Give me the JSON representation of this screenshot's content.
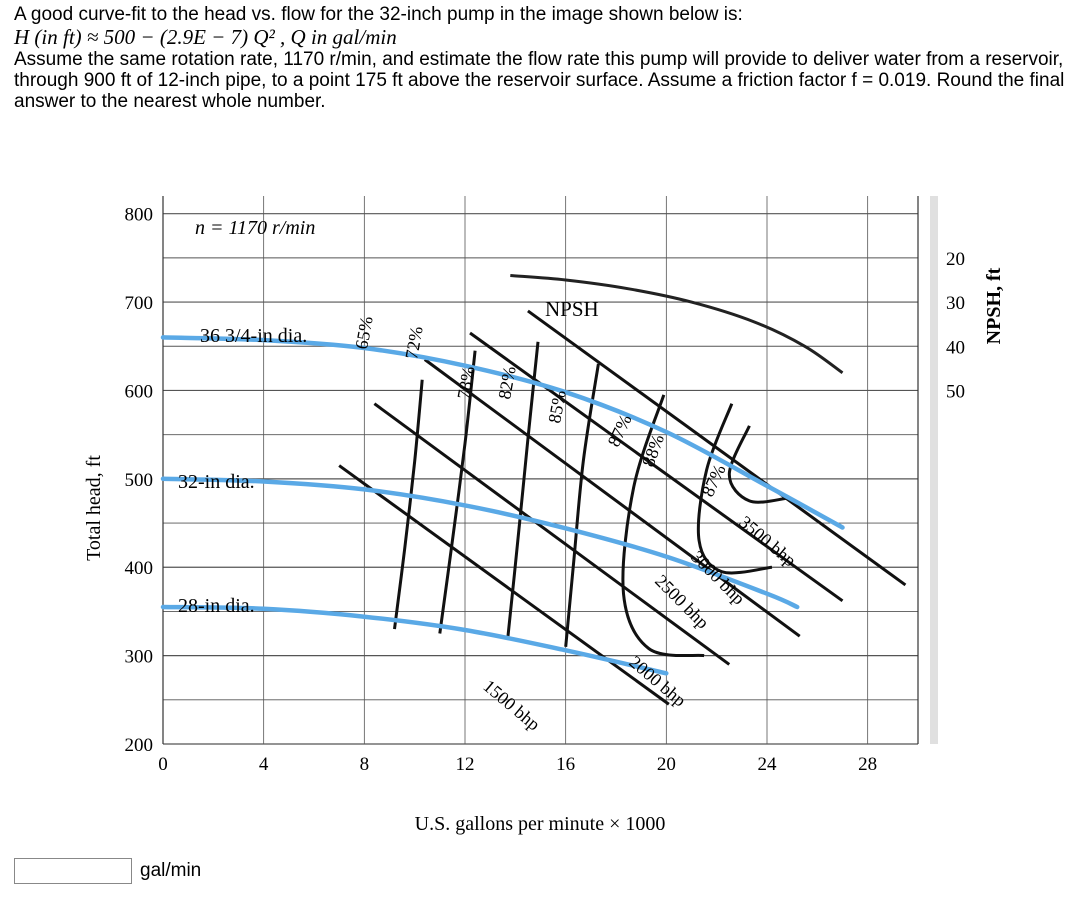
{
  "question": {
    "line1": "A good curve-fit to the head vs. flow for the 32-inch pump in the image shown below is:",
    "formula": "H (in ft) ≈ 500 − (2.9E − 7) Q² ,   Q in gal/min",
    "body": "Assume the same rotation rate, 1170 r/min, and estimate the flow rate this pump will provide to deliver water from a reservoir, through 900 ft of 12-inch pipe, to a point 175 ft above the reservoir surface. Assume a friction factor f = 0.019. Round the final answer to the nearest whole number."
  },
  "answer": {
    "value": "",
    "unit": "gal/min"
  },
  "chart_data": {
    "type": "line",
    "xlabel": "U.S. gallons per minute × 1000",
    "ylabel": "Total head, ft",
    "y2label": "NPSH, ft",
    "xlim": [
      0,
      30
    ],
    "ylim": [
      200,
      820
    ],
    "x_ticks": [
      "0",
      "4",
      "8",
      "12",
      "16",
      "20",
      "24",
      "28"
    ],
    "y_ticks": [
      "200",
      "300",
      "400",
      "500",
      "600",
      "700",
      "800"
    ],
    "y2_ticks": [
      "50",
      "40",
      "30",
      "20"
    ],
    "speed_label": "n = 1170 r/min",
    "head_curve_color": "#5aa9e6",
    "head_curves": [
      {
        "label": "36 3/4-in dia.",
        "points": [
          [
            0,
            660
          ],
          [
            4,
            657
          ],
          [
            8,
            648
          ],
          [
            12,
            628
          ],
          [
            16,
            598
          ],
          [
            20,
            553
          ],
          [
            24,
            492
          ],
          [
            27,
            445
          ]
        ]
      },
      {
        "label": "32-in dia.",
        "points": [
          [
            0,
            500
          ],
          [
            4,
            497
          ],
          [
            8,
            488
          ],
          [
            12,
            470
          ],
          [
            16,
            444
          ],
          [
            20,
            412
          ],
          [
            24,
            370
          ],
          [
            25.2,
            355
          ]
        ]
      },
      {
        "label": "28-in dia.",
        "points": [
          [
            0,
            355
          ],
          [
            4,
            353
          ],
          [
            8,
            344
          ],
          [
            12,
            329
          ],
          [
            16,
            306
          ],
          [
            20,
            280
          ]
        ]
      }
    ],
    "npsh_curve": {
      "label": "NPSH",
      "points": [
        [
          13.8,
          24
        ],
        [
          16,
          25
        ],
        [
          18.5,
          27
        ],
        [
          21,
          30
        ],
        [
          23.5,
          34.5
        ],
        [
          25.5,
          40
        ],
        [
          27,
          46
        ]
      ]
    },
    "efficiency_labels": [
      "65%",
      "72%",
      "78%",
      "82%",
      "85%",
      "87%",
      "88%",
      "87%"
    ],
    "power_labels": [
      "1500 bhp",
      "2000 bhp",
      "2500 bhp",
      "3000 bhp",
      "3500 bhp"
    ]
  }
}
